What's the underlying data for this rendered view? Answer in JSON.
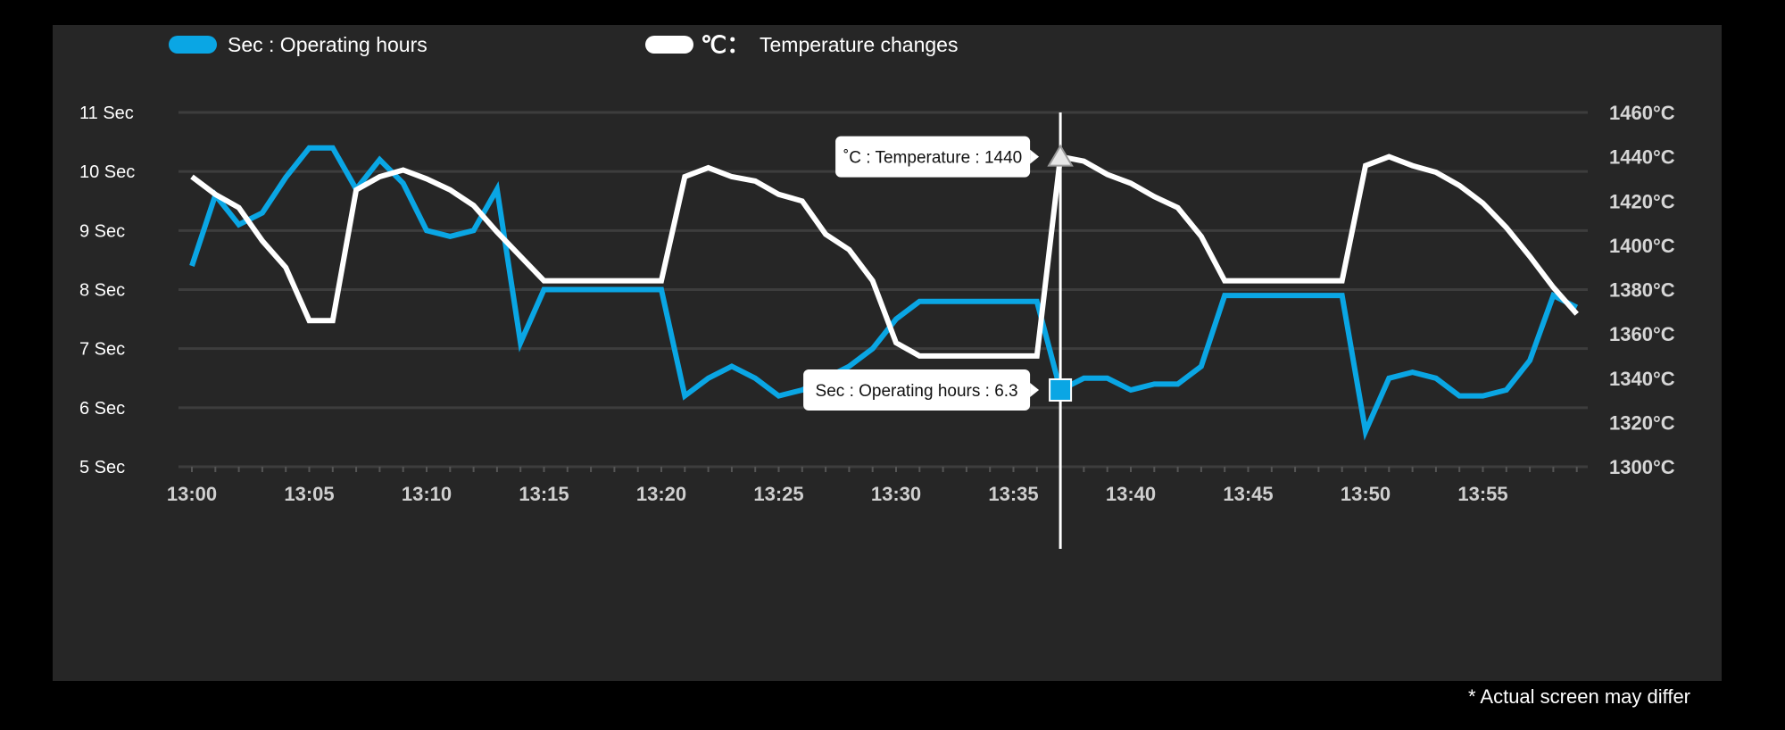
{
  "footnote": "* Actual screen may differ",
  "colors": {
    "background": "#000000",
    "panel": "#262626",
    "operating": "#0aa6e4",
    "temperature": "#ffffff",
    "grid": "#3d3d3d"
  },
  "chart_data": {
    "type": "line",
    "legend_position": "top-left",
    "grid": true,
    "x": [
      "13:00",
      "13:01",
      "13:02",
      "13:03",
      "13:04",
      "13:05",
      "13:06",
      "13:07",
      "13:08",
      "13:09",
      "13:10",
      "13:11",
      "13:12",
      "13:13",
      "13:14",
      "13:15",
      "13:16",
      "13:17",
      "13:18",
      "13:19",
      "13:20",
      "13:21",
      "13:22",
      "13:23",
      "13:24",
      "13:25",
      "13:26",
      "13:27",
      "13:28",
      "13:29",
      "13:30",
      "13:31",
      "13:32",
      "13:33",
      "13:34",
      "13:35",
      "13:36",
      "13:37",
      "13:38",
      "13:39",
      "13:40",
      "13:41",
      "13:42",
      "13:43",
      "13:44",
      "13:45",
      "13:46",
      "13:47",
      "13:48",
      "13:49",
      "13:50",
      "13:51",
      "13:52",
      "13:53",
      "13:54",
      "13:55",
      "13:56",
      "13:57",
      "13:58",
      "13:59"
    ],
    "x_tick_labels": [
      "13:00",
      "13:05",
      "13:10",
      "13:15",
      "13:20",
      "13:25",
      "13:30",
      "13:35",
      "13:40",
      "13:45",
      "13:50",
      "13:55"
    ],
    "y_left": {
      "ticks": [
        "5 Sec",
        "6 Sec",
        "7 Sec",
        "8 Sec",
        "9 Sec",
        "10 Sec",
        "11 Sec"
      ],
      "ylim": [
        5,
        11
      ]
    },
    "y_right": {
      "ticks": [
        "1300°C",
        "1320°C",
        "1340°C",
        "1360°C",
        "1380°C",
        "1400°C",
        "1420°C",
        "1440°C",
        "1460°C"
      ],
      "ylim": [
        1300,
        1460
      ]
    },
    "series": [
      {
        "name": "Sec : Operating hours",
        "axis": "left",
        "color": "#0aa6e4",
        "values": [
          8.4,
          9.6,
          9.1,
          9.3,
          9.9,
          10.4,
          10.4,
          9.7,
          10.2,
          9.8,
          9.0,
          8.9,
          9.0,
          9.7,
          7.1,
          8.0,
          8.0,
          8.0,
          8.0,
          8.0,
          8.0,
          6.2,
          6.5,
          6.7,
          6.5,
          6.2,
          6.3,
          6.5,
          6.7,
          7.0,
          7.5,
          7.8,
          7.8,
          7.8,
          7.8,
          7.8,
          7.8,
          6.3,
          6.5,
          6.5,
          6.3,
          6.4,
          6.4,
          6.7,
          7.9,
          7.9,
          7.9,
          7.9,
          7.9,
          7.9,
          5.6,
          6.5,
          6.6,
          6.5,
          6.2,
          6.2,
          6.3,
          6.8,
          7.9,
          7.7
        ]
      },
      {
        "name": "Temperature changes",
        "legend_prefix": "℃：",
        "axis": "right",
        "color": "#ffffff",
        "values": [
          1431,
          1423,
          1417,
          1402,
          1390,
          1366,
          1366,
          1425,
          1431,
          1434,
          1430,
          1425,
          1418,
          1406,
          1395,
          1384,
          1384,
          1384,
          1384,
          1384,
          1384,
          1431,
          1435,
          1431,
          1429,
          1423,
          1420,
          1405,
          1398,
          1384,
          1356,
          1350,
          1350,
          1350,
          1350,
          1350,
          1350,
          1440,
          1438,
          1432,
          1428,
          1422,
          1417,
          1404,
          1384,
          1384,
          1384,
          1384,
          1384,
          1384,
          1436,
          1440,
          1436,
          1433,
          1427,
          1419,
          1408,
          1395,
          1381,
          1369
        ]
      }
    ],
    "tooltip": {
      "x_index": 37,
      "temperature_label": "˚C : Temperature : 1440",
      "operating_label": "Sec : Operating hours : 6.3"
    }
  }
}
